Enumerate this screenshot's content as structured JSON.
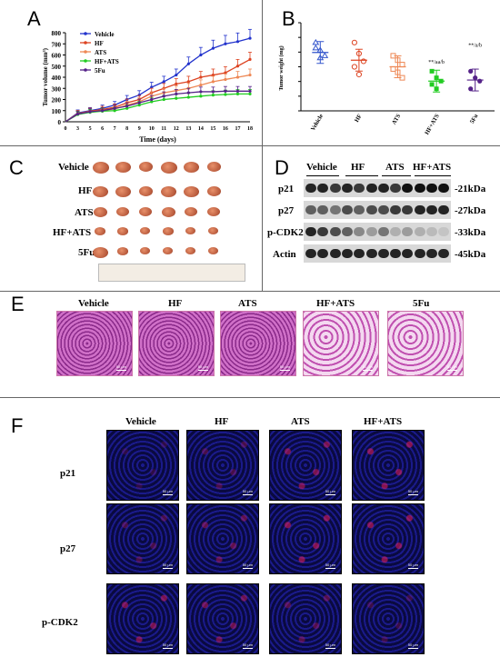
{
  "panels": {
    "A": "A",
    "B": "B",
    "C": "C",
    "D": "D",
    "E": "E",
    "F": "F"
  },
  "groups": [
    "Vehicle",
    "HF",
    "ATS",
    "HF+ATS",
    "5Fu"
  ],
  "panelA": {
    "ylabel": "Tumor volume (mm³)",
    "xlabel": "Time (days)",
    "yticks": [
      "0",
      "100",
      "200",
      "300",
      "400",
      "500",
      "600",
      "700",
      "800"
    ],
    "xticks": [
      "0",
      "3",
      "5",
      "6",
      "7",
      "8",
      "9",
      "10",
      "11",
      "12",
      "13",
      "14",
      "15",
      "16",
      "17",
      "18"
    ],
    "legend": [
      "Vehicle",
      "HF",
      "ATS",
      "HF+ATS",
      "5Fu"
    ]
  },
  "chart_data": [
    {
      "type": "line",
      "xlabel": "Time (days)",
      "ylabel": "Tumor volume (mm³)",
      "ylim": [
        0,
        800
      ],
      "x": [
        0,
        3,
        5,
        6,
        7,
        8,
        9,
        10,
        11,
        12,
        13,
        14,
        15,
        16,
        17,
        18
      ],
      "series": [
        {
          "name": "Vehicle",
          "color": "#2233cc",
          "values": [
            0,
            80,
            100,
            120,
            150,
            200,
            240,
            310,
            360,
            420,
            520,
            600,
            660,
            700,
            720,
            750
          ]
        },
        {
          "name": "HF",
          "color": "#dd4422",
          "values": [
            0,
            75,
            95,
            110,
            130,
            170,
            200,
            260,
            300,
            340,
            360,
            400,
            420,
            440,
            500,
            560
          ]
        },
        {
          "name": "ATS",
          "color": "#ee8855",
          "values": [
            0,
            70,
            90,
            100,
            115,
            150,
            180,
            230,
            260,
            280,
            300,
            330,
            360,
            380,
            400,
            420
          ]
        },
        {
          "name": "HF+ATS",
          "color": "#22cc22",
          "values": [
            0,
            65,
            85,
            95,
            100,
            120,
            150,
            180,
            200,
            210,
            220,
            230,
            240,
            245,
            250,
            250
          ]
        },
        {
          "name": "5Fu",
          "color": "#552288",
          "values": [
            0,
            70,
            90,
            100,
            120,
            140,
            170,
            200,
            230,
            250,
            260,
            270,
            270,
            275,
            275,
            275
          ]
        }
      ]
    },
    {
      "type": "scatter",
      "ylabel": "Tumor weight (mg)",
      "categories": [
        "Vehicle",
        "HF",
        "ATS",
        "HF+ATS",
        "5Fu"
      ],
      "annotations": [
        "",
        "",
        "",
        "**/aa/b",
        "**/a/b"
      ],
      "colors": [
        "#3355cc",
        "#dd4422",
        "#ee8855",
        "#22cc22",
        "#552288"
      ],
      "points": [
        [
          0.62,
          0.55,
          0.5,
          0.57,
          0.48
        ],
        [
          0.62,
          0.52,
          0.45,
          0.4,
          0.33
        ],
        [
          0.5,
          0.46,
          0.42,
          0.38,
          0.35,
          0.3
        ],
        [
          0.36,
          0.3,
          0.27,
          0.24,
          0.2
        ],
        [
          0.36,
          0.3,
          0.27,
          0.2
        ]
      ],
      "means": [
        0.53,
        0.46,
        0.4,
        0.27,
        0.28
      ]
    }
  ],
  "panelB": {
    "ylabel": "Tumor weight (mg)"
  },
  "panelD": {
    "rows": [
      "p21",
      "p27",
      "p-CDK2",
      "Actin"
    ],
    "kda": [
      "-21kDa",
      "-27kDa",
      "-33kDa",
      "-45kDa"
    ],
    "cols": [
      "Vehicle",
      "HF",
      "ATS",
      "HF+ATS"
    ]
  },
  "scale_um": "50 μm",
  "panelF": {
    "rows": [
      "p21",
      "p27",
      "p-CDK2"
    ],
    "cols": [
      "Vehicle",
      "HF",
      "ATS",
      "HF+ATS"
    ]
  }
}
